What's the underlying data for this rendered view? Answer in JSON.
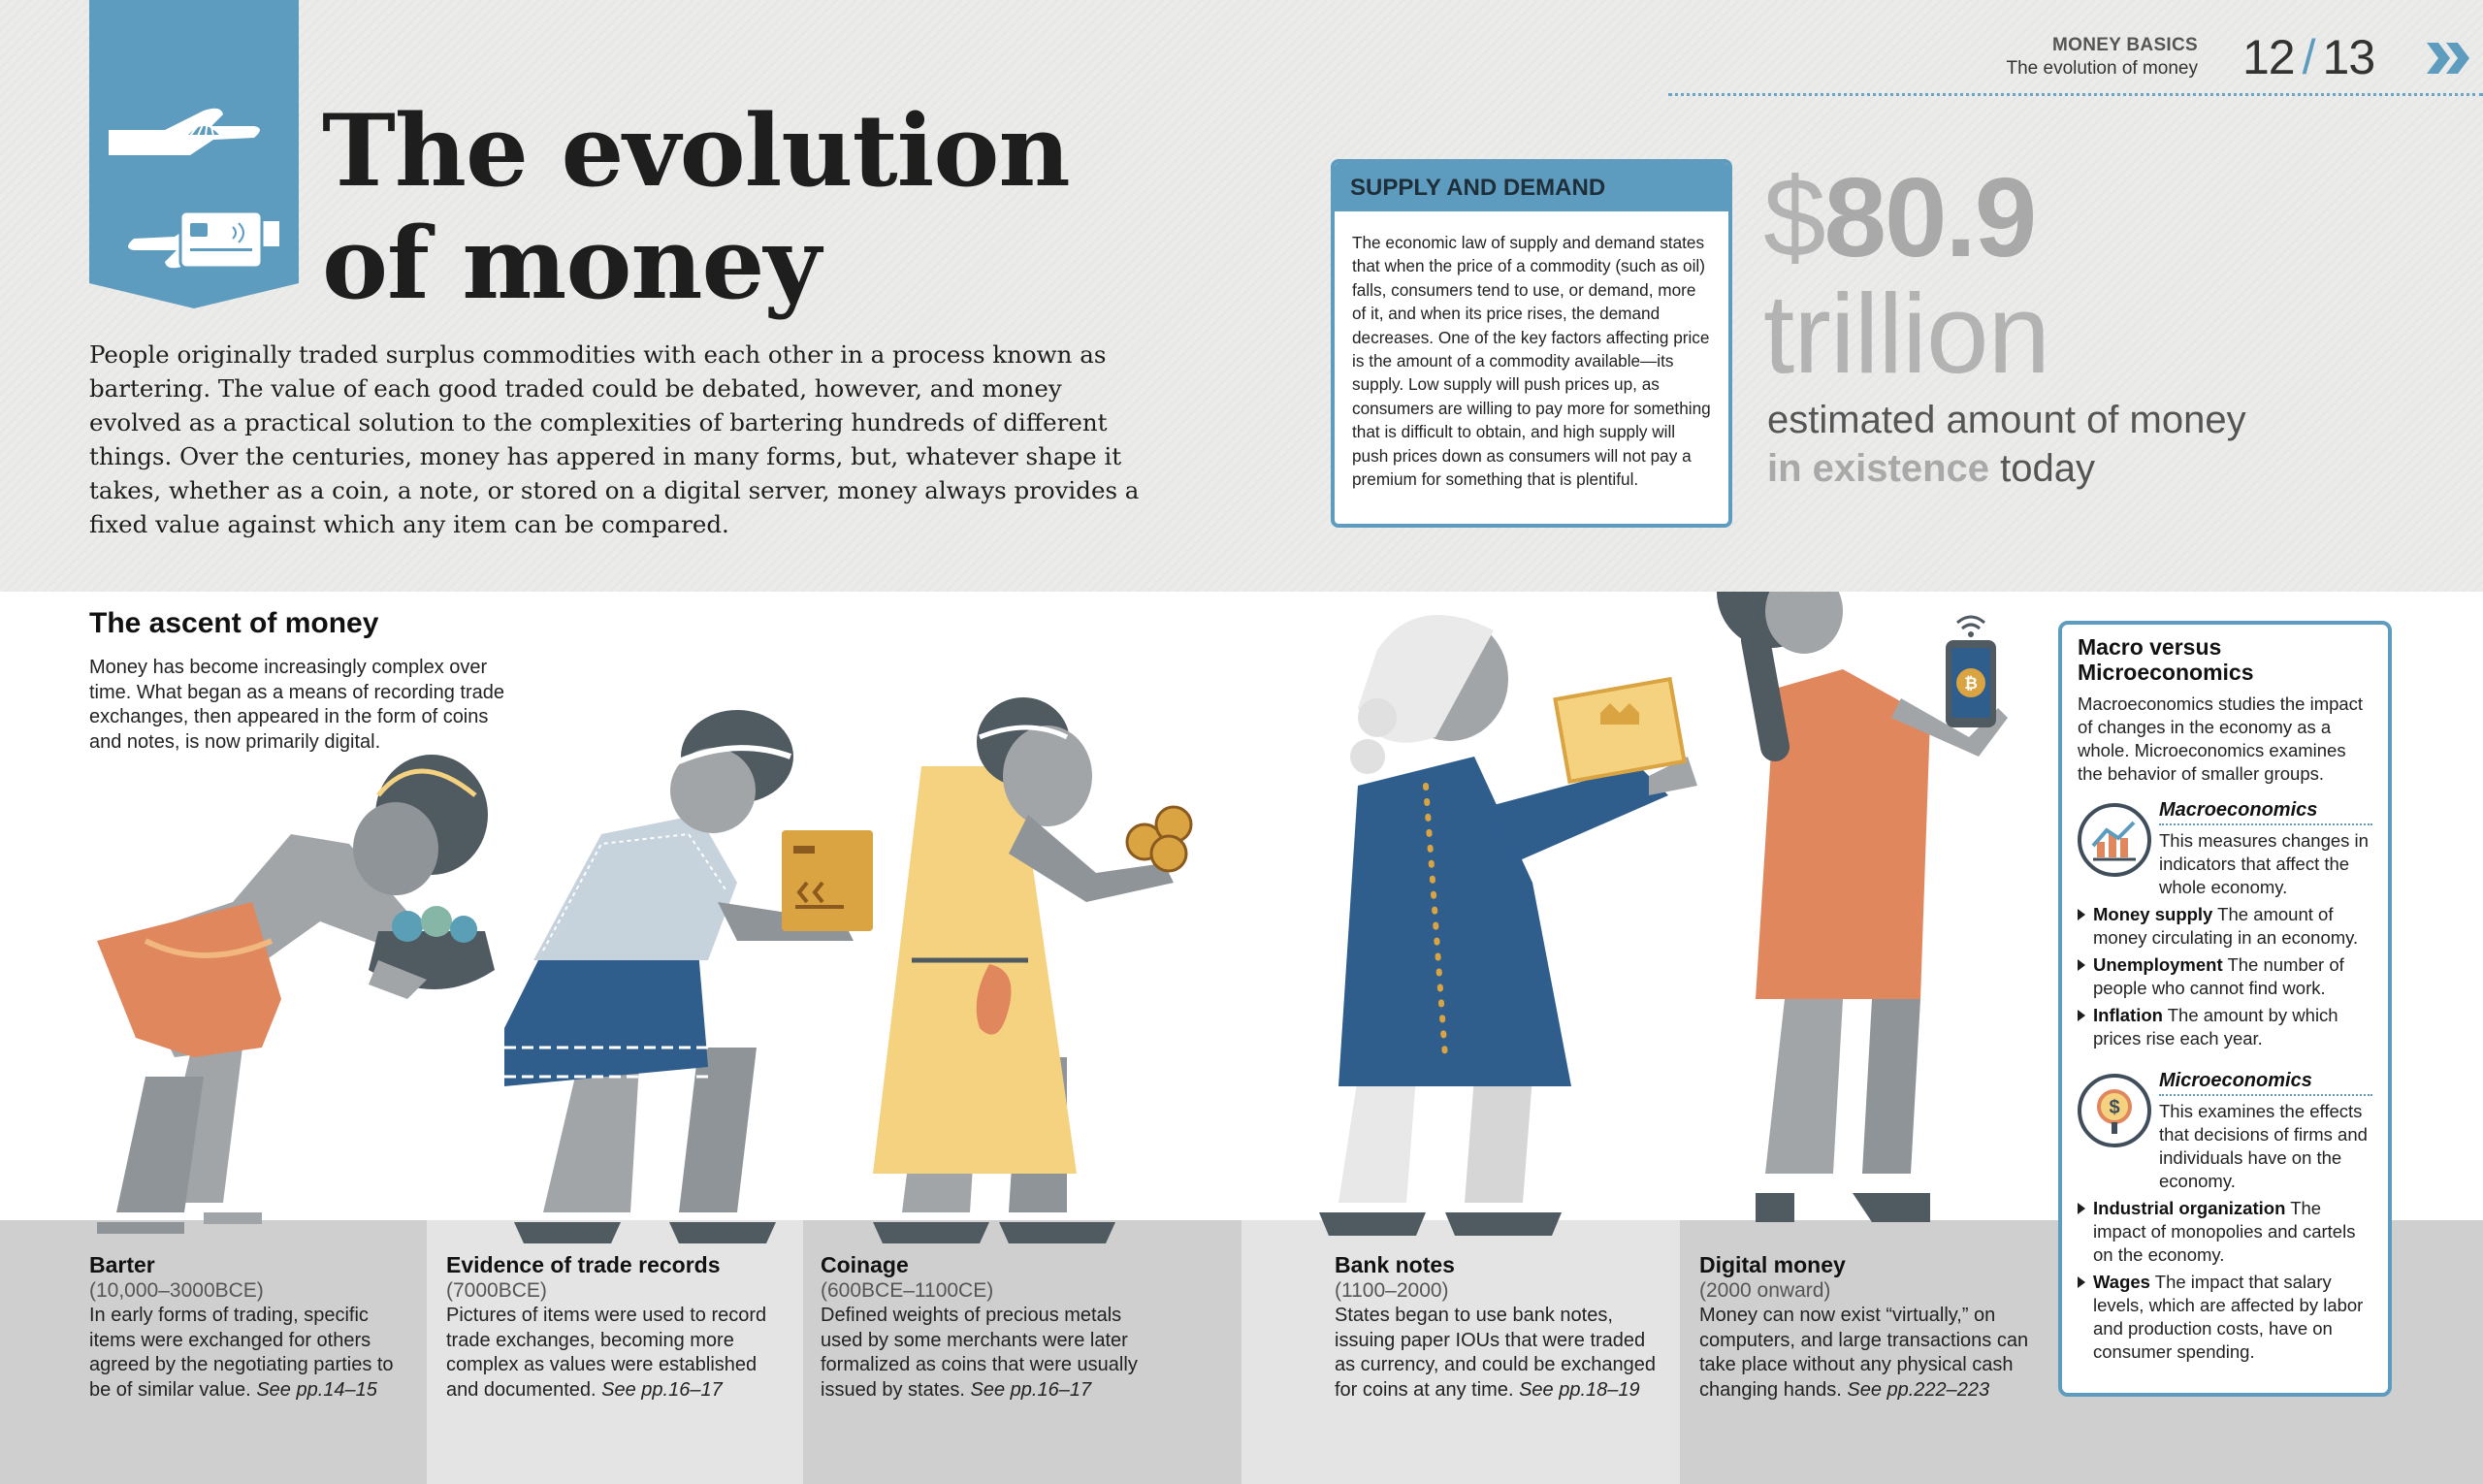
{
  "header": {
    "category": "MONEY BASICS",
    "subtitle": "The evolution of money",
    "page_left": "12",
    "page_sep": "/",
    "page_right": "13"
  },
  "title": {
    "line1": "The evolution",
    "line2": "of money"
  },
  "intro": "People originally traded surplus commodities with each other in a process known as bartering. The value of each good traded could be debated, however, and money evolved as a practical solution to the complexities of bartering hundreds of different things. Over the centuries, money has appered in many forms, but, whatever shape it takes, whether as a coin, a note, or stored on a digital server, money always provides a fixed value against which any item can be compared.",
  "supply_demand": {
    "heading": "SUPPLY AND DEMAND",
    "text": "The economic law of supply and demand states that when the price of a commodity (such as oil) falls, consumers tend to use, or demand, more of it, and when its price rises, the demand decreases. One of the key factors affecting price is the amount of a commodity available—its supply. Low supply will push prices up, as consumers are willing to pay more for something that is difficult to obtain, and high supply will push prices down as consumers will not pay a premium for something that is plentiful."
  },
  "big_stat": {
    "currency": "$",
    "value": "80.9",
    "unit": "trillion",
    "caption_line1": "estimated amount of money",
    "caption_em": "in existence",
    "caption_end": "today"
  },
  "ascent": {
    "heading": "The ascent of money",
    "text": "Money has become increasingly complex over time. What began as a means of recording trade exchanges, then appeared in the form of coins and notes, is now primarily digital."
  },
  "eras": [
    {
      "name": "Barter",
      "dates": "(10,000–3000BCE)",
      "text": "In early forms of trading, specific items were exchanged for others agreed by the negotiating parties to be of similar value.",
      "ref": "See pp.14–15"
    },
    {
      "name": "Evidence of trade records",
      "dates": "(7000BCE)",
      "text": "Pictures of items were used to record trade exchanges, becoming more complex as values were established and documented.",
      "ref": "See pp.16–17"
    },
    {
      "name": "Coinage",
      "dates": "(600BCE–1100CE)",
      "text": "Defined weights of precious metals used by some merchants were later formalized as coins that were usually issued by states.",
      "ref": "See pp.16–17"
    },
    {
      "name": "Bank notes",
      "dates": "(1100–2000)",
      "text": "States began to use bank notes, issuing paper IOUs that were traded as currency, and could be exchanged for coins at any time.",
      "ref": "See pp.18–19"
    },
    {
      "name": "Digital money",
      "dates": "(2000 onward)",
      "text": "Money can now exist “virtually,” on computers, and large transactions can take place without any physical cash changing hands.",
      "ref": "See pp.222–223"
    }
  ],
  "macro_box": {
    "heading": "Macro versus Microeconomics",
    "intro": "Macroeconomics studies the impact of changes in the economy as a whole. Microeconomics examines the behavior of smaller groups.",
    "macro_title": "Macroeconomics",
    "macro_desc": "This measures changes in indicators that affect the whole economy.",
    "macro_items": [
      {
        "term": "Money supply",
        "def": "The amount of money circulating in an economy."
      },
      {
        "term": "Unemployment",
        "def": "The number of people who cannot find work."
      },
      {
        "term": "Inflation",
        "def": "The amount by which prices rise each year."
      }
    ],
    "micro_title": "Microeconomics",
    "micro_desc": "This examines the effects that decisions of firms and individuals have on the economy.",
    "micro_items": [
      {
        "term": "Industrial organization",
        "def": "The impact of monopolies and cartels on the economy."
      },
      {
        "term": "Wages",
        "def": "The impact that salary levels, which are affected by labor and production costs, have on consumer spending."
      }
    ]
  },
  "icons": {
    "badge": "hands-shell-card-icon",
    "macro": "chart-icon",
    "micro": "dollar-magnifier-icon",
    "phone": "bitcoin-icon",
    "wifi": "wifi-icon",
    "chevron": "double-chevron-icon"
  },
  "colors": {
    "accent_blue": "#5d9cbe",
    "orange": "#e0875e",
    "yellow": "#f5d27f",
    "figure_grey": "#a1a5a8",
    "dark_grey": "#4f5a61",
    "coat_blue": "#2f5d8c"
  }
}
